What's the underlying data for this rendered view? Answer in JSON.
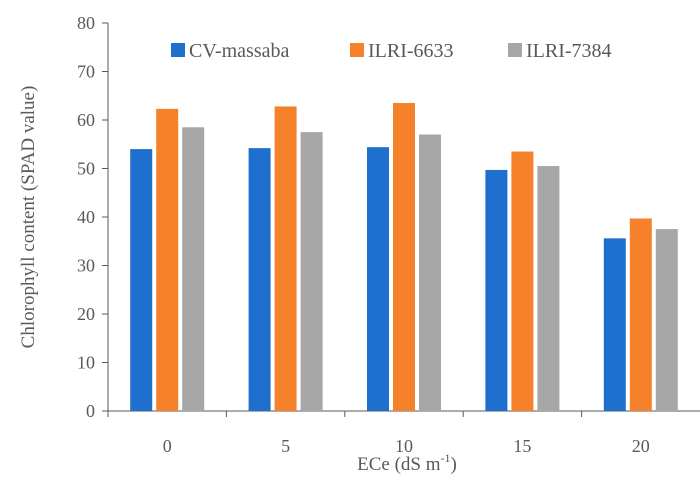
{
  "chart_data": {
    "type": "bar",
    "categories": [
      "0",
      "5",
      "10",
      "15",
      "20"
    ],
    "series": [
      {
        "name": "CV-massaba",
        "color": "#1f6fce",
        "values": [
          54.0,
          54.2,
          54.4,
          49.7,
          35.6
        ]
      },
      {
        "name": "ILRI-6633",
        "color": "#f5812a",
        "values": [
          62.3,
          62.8,
          63.5,
          53.5,
          39.7
        ]
      },
      {
        "name": "ILRI-7384",
        "color": "#a6a6a6",
        "values": [
          58.5,
          57.5,
          57.0,
          50.5,
          37.5
        ]
      }
    ],
    "xlabel_main": "ECe (dS m",
    "xlabel_sup": "-1",
    "xlabel_end": ")",
    "ylabel": "Chlorophyll content (SPAD value)",
    "ylim": [
      0,
      80
    ],
    "yticks": [
      "0",
      "10",
      "20",
      "30",
      "40",
      "50",
      "60",
      "70",
      "80"
    ],
    "legend_position": "top",
    "grid": false
  }
}
